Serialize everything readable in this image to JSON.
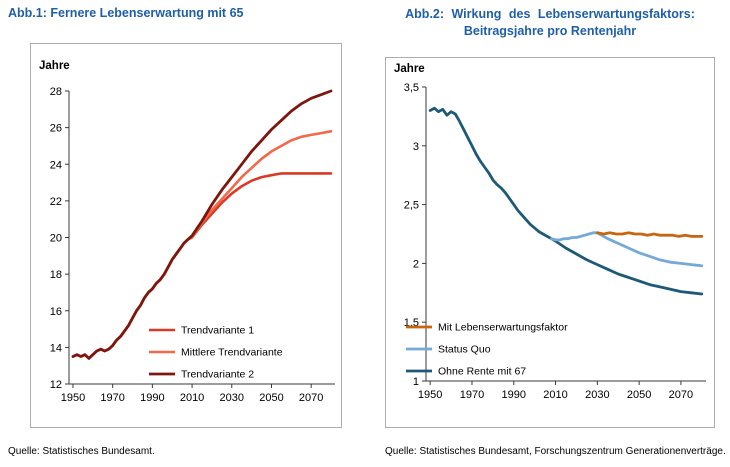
{
  "colors": {
    "title_blue": "#1F5FA8",
    "axis": "#3A3A3A",
    "frame_border": "#ADADAD",
    "background": "#FFFFFF"
  },
  "figures": [
    {
      "title": "Abb.1: Fernere Lebenserwartung mit 65",
      "source": "Quelle: Statistisches Bundesamt."
    },
    {
      "title_line1": "Abb.2: Wirkung des Lebenserwartungsfaktors:",
      "title_line2": "Beitragsjahre pro Rentenjahr",
      "source": "Quelle: Statistisches Bundesamt, Forschungszentrum Generationenverträge."
    }
  ],
  "chart_data": [
    {
      "type": "line",
      "title": "Abb.1: Fernere Lebenserwartung mit 65",
      "ylabel": "Jahre",
      "xlabel": "",
      "xlim": [
        1948,
        2082
      ],
      "ylim": [
        12,
        28
      ],
      "grid": false,
      "xticks": [
        1950,
        1970,
        1990,
        2010,
        2030,
        2050,
        2070
      ],
      "ytick_values": [
        12,
        14,
        16,
        18,
        20,
        22,
        24,
        26,
        28
      ],
      "ytick_labels": [
        "12",
        "14",
        "16",
        "18",
        "20",
        "22",
        "24",
        "26",
        "28"
      ],
      "legend": {
        "position": "bottom-right",
        "items": [
          0,
          1,
          2
        ]
      },
      "series": [
        {
          "name": "Trendvariante 1",
          "color": "#D93A26",
          "width": 2.6,
          "x": [
            1950,
            1952,
            1954,
            1956,
            1958,
            1960,
            1962,
            1964,
            1966,
            1968,
            1970,
            1972,
            1974,
            1976,
            1978,
            1980,
            1982,
            1984,
            1986,
            1988,
            1990,
            1992,
            1994,
            1996,
            1998,
            2000,
            2002,
            2004,
            2006,
            2008,
            2010,
            2015,
            2020,
            2025,
            2030,
            2035,
            2040,
            2045,
            2050,
            2055,
            2060,
            2065,
            2070,
            2075,
            2080
          ],
          "y": [
            13.5,
            13.6,
            13.5,
            13.6,
            13.4,
            13.6,
            13.8,
            13.9,
            13.8,
            13.9,
            14.1,
            14.4,
            14.6,
            14.9,
            15.2,
            15.6,
            16.0,
            16.3,
            16.7,
            17.0,
            17.2,
            17.5,
            17.7,
            18.0,
            18.4,
            18.8,
            19.1,
            19.4,
            19.7,
            19.9,
            20.0,
            20.7,
            21.3,
            21.9,
            22.4,
            22.8,
            23.1,
            23.3,
            23.4,
            23.5,
            23.5,
            23.5,
            23.5,
            23.5,
            23.5
          ]
        },
        {
          "name": "Mittlere Trendvariante",
          "color": "#F2694A",
          "width": 2.6,
          "x": [
            1950,
            1952,
            1954,
            1956,
            1958,
            1960,
            1962,
            1964,
            1966,
            1968,
            1970,
            1972,
            1974,
            1976,
            1978,
            1980,
            1982,
            1984,
            1986,
            1988,
            1990,
            1992,
            1994,
            1996,
            1998,
            2000,
            2002,
            2004,
            2006,
            2008,
            2010,
            2015,
            2020,
            2025,
            2030,
            2035,
            2040,
            2045,
            2050,
            2055,
            2060,
            2065,
            2070,
            2075,
            2080
          ],
          "y": [
            13.5,
            13.6,
            13.5,
            13.6,
            13.4,
            13.6,
            13.8,
            13.9,
            13.8,
            13.9,
            14.1,
            14.4,
            14.6,
            14.9,
            15.2,
            15.6,
            16.0,
            16.3,
            16.7,
            17.0,
            17.2,
            17.5,
            17.7,
            18.0,
            18.4,
            18.8,
            19.1,
            19.4,
            19.7,
            19.9,
            20.0,
            20.8,
            21.5,
            22.1,
            22.7,
            23.3,
            23.8,
            24.3,
            24.7,
            25.0,
            25.3,
            25.5,
            25.6,
            25.7,
            25.8
          ]
        },
        {
          "name": "Trendvariante 2",
          "color": "#7E160E",
          "width": 2.8,
          "x": [
            1950,
            1952,
            1954,
            1956,
            1958,
            1960,
            1962,
            1964,
            1966,
            1968,
            1970,
            1972,
            1974,
            1976,
            1978,
            1980,
            1982,
            1984,
            1986,
            1988,
            1990,
            1992,
            1994,
            1996,
            1998,
            2000,
            2002,
            2004,
            2006,
            2008,
            2010,
            2015,
            2020,
            2025,
            2030,
            2035,
            2040,
            2045,
            2050,
            2055,
            2060,
            2065,
            2070,
            2075,
            2080
          ],
          "y": [
            13.5,
            13.6,
            13.5,
            13.6,
            13.4,
            13.6,
            13.8,
            13.9,
            13.8,
            13.9,
            14.1,
            14.4,
            14.6,
            14.9,
            15.2,
            15.6,
            16.0,
            16.3,
            16.7,
            17.0,
            17.2,
            17.5,
            17.7,
            18.0,
            18.4,
            18.8,
            19.1,
            19.4,
            19.7,
            19.9,
            20.1,
            20.9,
            21.8,
            22.6,
            23.3,
            24.0,
            24.7,
            25.3,
            25.9,
            26.4,
            26.9,
            27.3,
            27.6,
            27.8,
            28.0
          ]
        }
      ]
    },
    {
      "type": "line",
      "title": "Abb.2: Wirkung des Lebenserwartungsfaktors: Beitragsjahre pro Rentenjahr",
      "ylabel": "Jahre",
      "xlabel": "",
      "xlim": [
        1948,
        2082
      ],
      "ylim": [
        1,
        3.5
      ],
      "grid": false,
      "xticks": [
        1950,
        1970,
        1990,
        2010,
        2030,
        2050,
        2070
      ],
      "ytick_values": [
        1,
        1.5,
        2,
        2.5,
        3,
        3.5
      ],
      "ytick_labels": [
        "1",
        "1,5",
        "2",
        "2,5",
        "3",
        "3,5"
      ],
      "legend": {
        "position": "bottom-left",
        "items": [
          2,
          1,
          0
        ]
      },
      "series": [
        {
          "name": "Ohne Rente mit 67",
          "color": "#1E5A78",
          "width": 2.8,
          "x": [
            1950,
            1952,
            1954,
            1956,
            1958,
            1960,
            1962,
            1964,
            1966,
            1968,
            1970,
            1972,
            1974,
            1976,
            1978,
            1980,
            1982,
            1984,
            1986,
            1988,
            1990,
            1992,
            1994,
            1996,
            1998,
            2000,
            2002,
            2004,
            2006,
            2008,
            2010,
            2015,
            2020,
            2025,
            2030,
            2035,
            2040,
            2045,
            2050,
            2055,
            2060,
            2065,
            2070,
            2075,
            2080
          ],
          "y": [
            3.3,
            3.32,
            3.29,
            3.31,
            3.26,
            3.29,
            3.27,
            3.21,
            3.14,
            3.07,
            3.0,
            2.93,
            2.87,
            2.82,
            2.77,
            2.71,
            2.67,
            2.64,
            2.6,
            2.55,
            2.5,
            2.45,
            2.41,
            2.37,
            2.33,
            2.3,
            2.27,
            2.25,
            2.23,
            2.21,
            2.19,
            2.13,
            2.08,
            2.03,
            1.99,
            1.95,
            1.91,
            1.88,
            1.85,
            1.82,
            1.8,
            1.78,
            1.76,
            1.75,
            1.74
          ]
        },
        {
          "name": "Status Quo",
          "color": "#74A9D8",
          "width": 2.8,
          "x": [
            2008,
            2010,
            2012,
            2014,
            2016,
            2018,
            2020,
            2022,
            2024,
            2026,
            2028,
            2030,
            2035,
            2040,
            2045,
            2050,
            2055,
            2060,
            2065,
            2070,
            2075,
            2080
          ],
          "y": [
            2.21,
            2.2,
            2.2,
            2.21,
            2.21,
            2.22,
            2.22,
            2.23,
            2.24,
            2.25,
            2.26,
            2.26,
            2.21,
            2.17,
            2.13,
            2.09,
            2.06,
            2.03,
            2.01,
            2.0,
            1.99,
            1.98
          ]
        },
        {
          "name": "Mit Lebenserwartungsfaktor",
          "color": "#C8650F",
          "width": 2.8,
          "x": [
            2030,
            2033,
            2036,
            2039,
            2042,
            2045,
            2048,
            2051,
            2054,
            2057,
            2060,
            2063,
            2066,
            2069,
            2072,
            2075,
            2078,
            2080
          ],
          "y": [
            2.26,
            2.25,
            2.26,
            2.25,
            2.25,
            2.26,
            2.25,
            2.25,
            2.24,
            2.25,
            2.24,
            2.24,
            2.24,
            2.23,
            2.24,
            2.23,
            2.23,
            2.23
          ]
        }
      ]
    }
  ]
}
